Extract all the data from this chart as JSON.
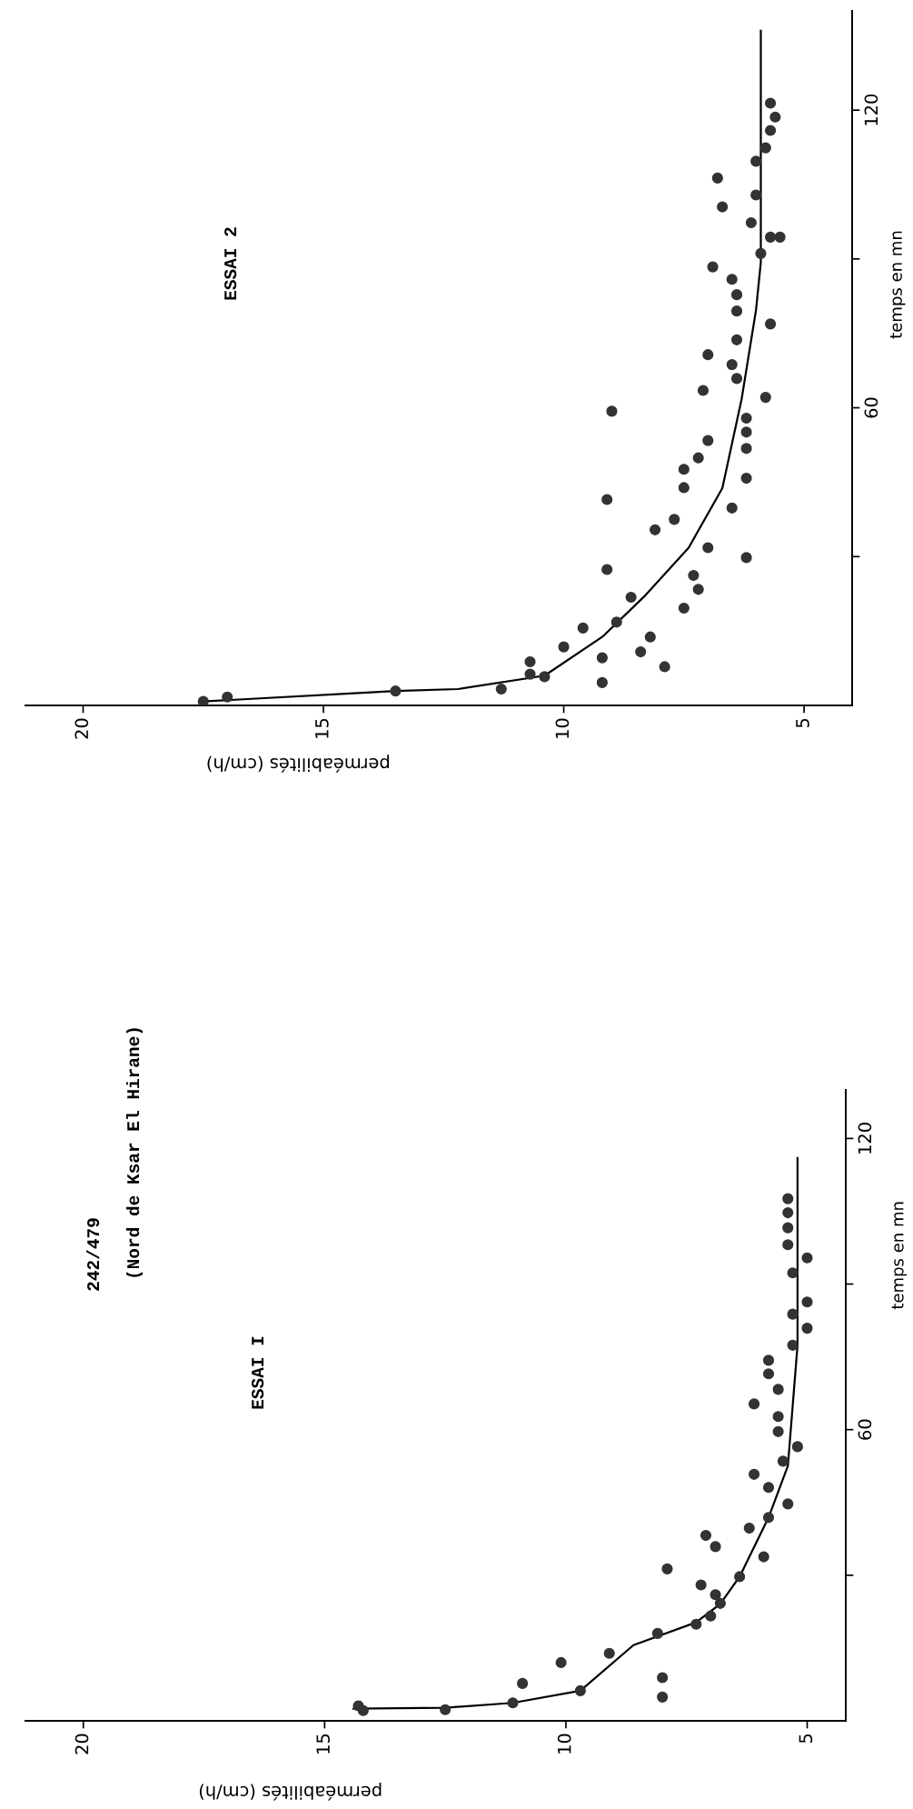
{
  "chart_data": [
    {
      "type": "scatter",
      "title": "242/479",
      "subtitle": "(Nord de Ksar El Hirane)",
      "annotations": [
        "ESSAI I"
      ],
      "xlabel": "perméabilités (cm/h)",
      "ylabel": "temps en mn",
      "xlim": [
        21.2,
        4.2
      ],
      "xticks": [
        20,
        15,
        10,
        5
      ],
      "ylim": [
        0,
        130
      ],
      "yticks": [
        {
          "value": 30,
          "label": null
        },
        {
          "value": 60,
          "label": "60"
        },
        {
          "value": 90,
          "label": null
        },
        {
          "value": 120,
          "label": "120"
        }
      ],
      "grid": false,
      "series": [
        {
          "type": "scatter",
          "marker": "circle",
          "color": "#333333",
          "values": [
            2.1,
            3.1,
            2.3,
            3.7,
            6.2,
            7.7,
            4.9,
            8.9,
            12.0,
            13.9,
            18.0,
            19.9,
            21.6,
            24.2,
            26.0,
            28.0,
            29.7,
            31.3,
            33.8,
            35.9,
            38.2,
            39.7,
            41.9,
            44.7,
            48.1,
            50.8,
            53.5,
            56.5,
            59.6,
            62.7,
            65.3,
            68.3,
            71.5,
            74.3,
            77.4,
            80.9,
            83.8,
            86.3,
            92.3,
            95.4,
            98.1,
            101.6,
            104.7,
            107.6
          ],
          "x": [
            14.2,
            14.3,
            12.5,
            11.1,
            9.7,
            10.9,
            8.0,
            8.0,
            10.1,
            9.1,
            8.1,
            7.3,
            7.0,
            6.8,
            6.9,
            7.2,
            6.4,
            7.9,
            5.9,
            6.9,
            7.1,
            6.2,
            5.8,
            5.4,
            5.8,
            6.1,
            5.5,
            5.2,
            5.6,
            5.6,
            6.1,
            5.6,
            5.8,
            5.8,
            5.3,
            5.0,
            5.3,
            5.0,
            5.3,
            5.0,
            5.4,
            5.4,
            5.4,
            5.4
          ]
        },
        {
          "type": "line",
          "color": "#000000",
          "values": [
            2.5,
            2.7,
            3.7,
            6.2,
            15.6,
            20.3,
            24.1,
            29.7,
            41.9,
            52.5,
            64.9,
            77.4,
            89.9,
            116
          ],
          "x": [
            14.4,
            12.5,
            11.1,
            9.7,
            8.6,
            7.3,
            6.8,
            6.4,
            5.8,
            5.4,
            5.3,
            5.2,
            5.2,
            5.2
          ]
        }
      ]
    },
    {
      "type": "scatter",
      "title": "ESSAI 2",
      "xlabel": "perméabilités (cm/h)",
      "ylabel": "temps en mn",
      "xlim": [
        21.2,
        4.0
      ],
      "xticks": [
        20,
        15,
        10,
        5
      ],
      "ylim": [
        0,
        140
      ],
      "yticks": [
        {
          "value": 30,
          "label": null
        },
        {
          "value": 60,
          "label": "60"
        },
        {
          "value": 90,
          "label": null
        },
        {
          "value": 120,
          "label": "120"
        }
      ],
      "grid": false,
      "series": [
        {
          "type": "scatter",
          "marker": "circle",
          "color": "#333333",
          "values": [
            0.8,
            1.7,
            2.9,
            3.3,
            6.3,
            8.8,
            5.8,
            4.6,
            9.6,
            11.8,
            15.6,
            16.8,
            21.8,
            27.4,
            10.8,
            13.8,
            7.8,
            19.6,
            23.4,
            26.2,
            31.8,
            29.8,
            35.4,
            37.5,
            41.5,
            39.8,
            45.8,
            43.9,
            47.6,
            49.9,
            53.4,
            51.8,
            55.1,
            57.9,
            59.3,
            62.1,
            63.5,
            65.9,
            68.7,
            70.7,
            73.7,
            76.9,
            79.5,
            82.8,
            85.9,
            88.4,
            91.1,
            94.4,
            94.4,
            97.3,
            100.5,
            102.9,
            106.3,
            109.7,
            112.4,
            115.9,
            118.6,
            121.4
          ],
          "x": [
            17.5,
            17.0,
            13.5,
            11.3,
            10.7,
            10.7,
            10.4,
            9.2,
            9.2,
            10.0,
            9.6,
            8.9,
            8.6,
            9.1,
            8.4,
            8.2,
            7.9,
            7.5,
            7.2,
            7.3,
            7.0,
            6.2,
            8.1,
            7.7,
            9.1,
            6.5,
            6.2,
            7.5,
            7.5,
            7.2,
            7.0,
            6.2,
            6.2,
            6.2,
            9.0,
            5.8,
            7.1,
            6.4,
            6.5,
            7.0,
            6.4,
            5.7,
            6.4,
            6.4,
            6.5,
            6.9,
            5.9,
            5.7,
            5.5,
            6.1,
            6.7,
            6.0,
            6.8,
            6.0,
            5.8,
            5.7,
            5.6,
            5.7
          ]
        },
        {
          "type": "line",
          "color": "#000000",
          "values": [
            0.8,
            2.9,
            3.3,
            6.0,
            13.8,
            22.2,
            31.8,
            43.8,
            61.7,
            79.7,
            89.3,
            136
          ],
          "x": [
            17.5,
            13.5,
            12.2,
            10.4,
            9.2,
            8.3,
            7.4,
            6.7,
            6.3,
            6.0,
            5.9,
            5.9
          ]
        }
      ]
    }
  ]
}
